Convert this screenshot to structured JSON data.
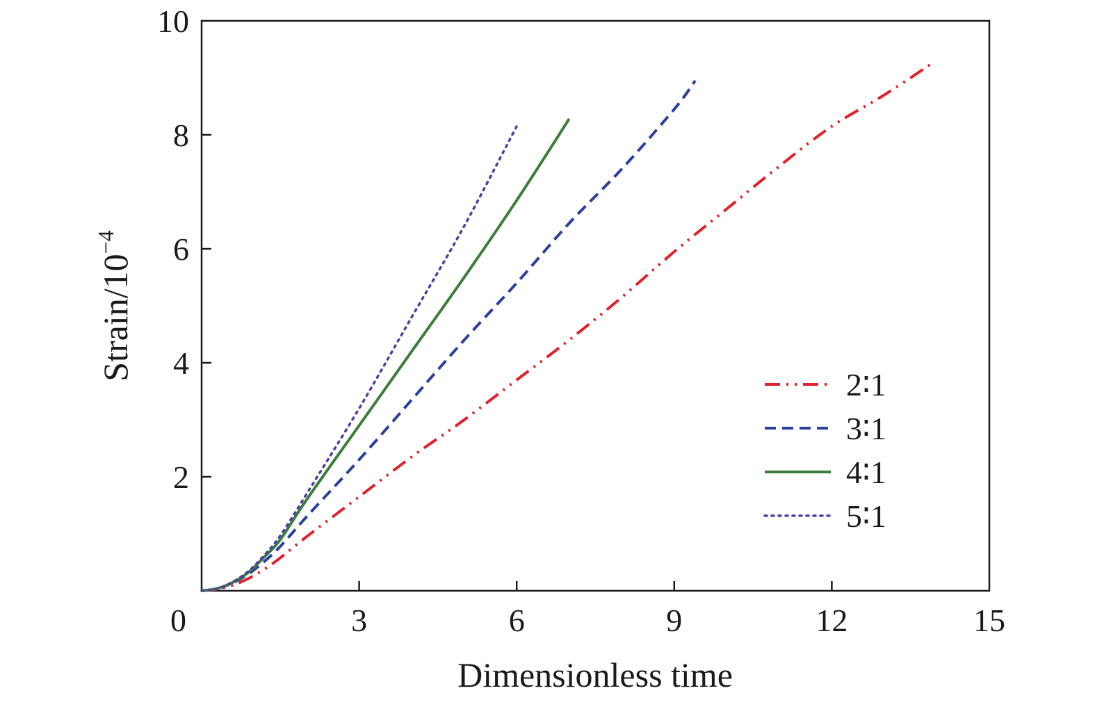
{
  "chart_data": {
    "type": "line",
    "title": "",
    "xlabel": "Dimensionless time",
    "ylabel_main": "Strain/10",
    "ylabel_exp": "−4",
    "xlim": [
      0,
      15
    ],
    "ylim": [
      0,
      10
    ],
    "x_ticks": [
      "0",
      "3",
      "6",
      "9",
      "12",
      "15"
    ],
    "y_ticks": [
      "2",
      "4",
      "6",
      "8",
      "10"
    ],
    "x_tick_values": [
      0,
      3,
      6,
      9,
      12,
      15
    ],
    "y_tick_values": [
      2,
      4,
      6,
      8,
      10
    ],
    "grid": false,
    "legend_position": "right",
    "series": [
      {
        "name": "2∶1",
        "color": "#e0202a",
        "dash": "dash-dot-dot",
        "x": [
          0,
          0.3,
          0.6,
          0.9,
          1.2,
          1.5,
          2,
          3,
          4,
          5,
          6,
          7,
          8,
          9,
          10,
          11,
          12,
          13,
          13.95
        ],
        "y": [
          0,
          0.03,
          0.1,
          0.22,
          0.38,
          0.58,
          0.95,
          1.65,
          2.35,
          3.0,
          3.7,
          4.4,
          5.15,
          5.95,
          6.7,
          7.45,
          8.15,
          8.7,
          9.28
        ]
      },
      {
        "name": "3∶1",
        "color": "#2a3f9e",
        "dash": "dash",
        "x": [
          0,
          0.3,
          0.6,
          0.9,
          1.2,
          1.5,
          2,
          3,
          4,
          5,
          6,
          7,
          8,
          9,
          9.4
        ],
        "y": [
          0,
          0.04,
          0.14,
          0.3,
          0.52,
          0.78,
          1.3,
          2.3,
          3.35,
          4.4,
          5.4,
          6.45,
          7.4,
          8.45,
          8.95
        ]
      },
      {
        "name": "4∶1",
        "color": "#3b7d3b",
        "dash": "solid",
        "x": [
          0,
          0.3,
          0.6,
          0.9,
          1.2,
          1.5,
          2,
          3,
          4,
          5,
          6,
          7
        ],
        "y": [
          0,
          0.04,
          0.15,
          0.33,
          0.6,
          0.9,
          1.6,
          2.9,
          4.2,
          5.5,
          6.85,
          8.28
        ]
      },
      {
        "name": "5∶1",
        "color": "#4e3fa0",
        "dash": "dot",
        "x": [
          0,
          0.3,
          0.6,
          0.9,
          1.2,
          1.5,
          2,
          3,
          4,
          5,
          6
        ],
        "y": [
          0,
          0.04,
          0.16,
          0.35,
          0.63,
          0.97,
          1.7,
          3.2,
          4.8,
          6.4,
          8.15
        ]
      }
    ]
  }
}
